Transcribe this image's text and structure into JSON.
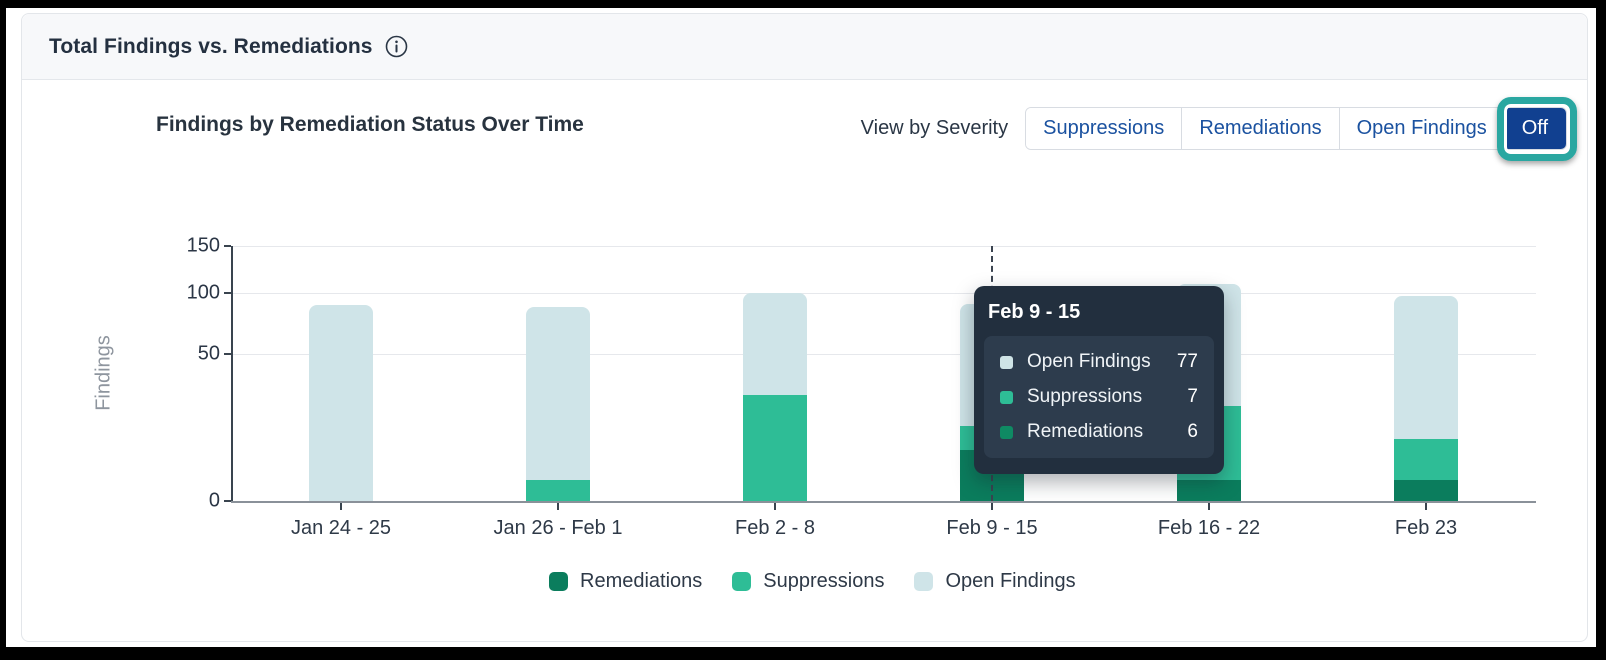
{
  "header": {
    "title": "Total Findings vs. Remediations"
  },
  "chart": {
    "title": "Findings by Remediation Status Over Time"
  },
  "controls": {
    "label": "View by Severity",
    "buttons": [
      {
        "label": "Suppressions",
        "active": false
      },
      {
        "label": "Remediations",
        "active": false
      },
      {
        "label": "Open Findings",
        "active": false
      },
      {
        "label": "Off",
        "active": true,
        "annotated": true
      }
    ]
  },
  "theme": {
    "accent_blue": "#114090",
    "link_blue": "#1b52a0",
    "annotation_teal": "#2aa7a1",
    "remediations_green": "#0b7d5d",
    "suppressions_green": "#2ebd96",
    "open_findings_blue": "#cfe4e8",
    "tooltip_bg": "#222f3e"
  },
  "chart_data": {
    "type": "bar",
    "stacked": true,
    "title": "Findings by Remediation Status Over Time",
    "xlabel": "",
    "ylabel": "Findings",
    "categories": [
      "Jan 24 - 25",
      "Jan 26 - Feb 1",
      "Feb 2 - 8",
      "Feb 9 - 15",
      "Feb 16 - 22",
      "Feb 23"
    ],
    "series": [
      {
        "name": "Remediations",
        "color": "#0b7d5d",
        "values": [
          0,
          0,
          0,
          6,
          1,
          1
        ]
      },
      {
        "name": "Suppressions",
        "color": "#2ebd96",
        "values": [
          0,
          1,
          26,
          7,
          20,
          8
        ]
      },
      {
        "name": "Open Findings",
        "color": "#cfe4e8",
        "values": [
          89,
          86,
          74,
          77,
          88,
          88
        ]
      }
    ],
    "yticks": [
      0,
      50,
      100,
      150
    ],
    "ylim": [
      0,
      150
    ],
    "yscale": "sqrt",
    "grid": true,
    "legend_position": "bottom",
    "hovered_category": "Feb 9 - 15"
  },
  "tooltip": {
    "title": "Feb 9 - 15",
    "rows": [
      {
        "label": "Open Findings",
        "value": "77",
        "color": "#cfe4e6"
      },
      {
        "label": "Suppressions",
        "value": "7",
        "color": "#2ebd96"
      },
      {
        "label": "Remediations",
        "value": "6",
        "color": "#0f8a63"
      }
    ]
  }
}
